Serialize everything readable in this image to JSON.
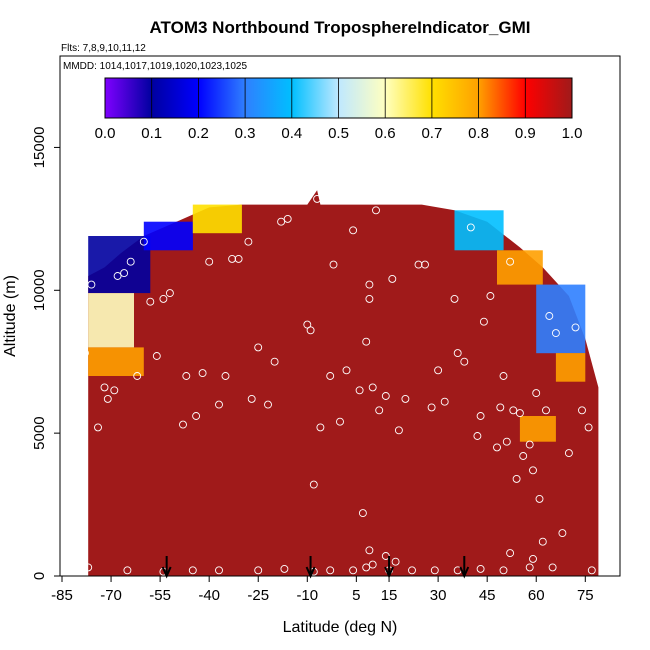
{
  "chart_data": {
    "type": "heatmap",
    "title": "ATOM3 Northbound TroposphereIndicator_GMI",
    "flights_note": "Flts: 7,8,9,10,11,12",
    "dates_note": "MMDD: 1014,1017,1019,1020,1023,1025",
    "xlabel": "Latitude (deg N)",
    "ylabel": "Altitude (m)",
    "xlim": [
      -85,
      85
    ],
    "ylim": [
      0,
      17500
    ],
    "x_ticks": [
      "-85",
      "-70",
      "-55",
      "-40",
      "-25",
      "-10",
      "5",
      "15",
      "30",
      "45",
      "60",
      "75"
    ],
    "y_ticks": [
      "0",
      "5000",
      "10000",
      "15000"
    ],
    "colorbar": {
      "range": [
        0,
        1
      ],
      "tick_labels": [
        "0.0",
        "0.1",
        "0.2",
        "0.3",
        "0.4",
        "0.5",
        "0.6",
        "0.7",
        "0.8",
        "0.9",
        "1.0"
      ],
      "colors": [
        "#7f00ff",
        "#0000a0",
        "#0000ff",
        "#2f7fff",
        "#00bfff",
        "#bfe8ff",
        "#ffffc0",
        "#ffe000",
        "#ffa000",
        "#ff0000",
        "#a01a1a"
      ]
    },
    "background_value": 1.0,
    "arrows_lat": [
      -53,
      -9,
      15,
      38
    ],
    "curtain_profile": [
      {
        "lat": -77,
        "alt_top": 10500
      },
      {
        "lat": -72,
        "alt_top": 10800
      },
      {
        "lat": -67,
        "alt_top": 11300
      },
      {
        "lat": -60,
        "alt_top": 11900
      },
      {
        "lat": -50,
        "alt_top": 12400
      },
      {
        "lat": -40,
        "alt_top": 12900
      },
      {
        "lat": -30,
        "alt_top": 13000
      },
      {
        "lat": -10,
        "alt_top": 13000
      },
      {
        "lat": -7,
        "alt_top": 13500
      },
      {
        "lat": -6,
        "alt_top": 13000
      },
      {
        "lat": 25,
        "alt_top": 13000
      },
      {
        "lat": 35,
        "alt_top": 12800
      },
      {
        "lat": 45,
        "alt_top": 12400
      },
      {
        "lat": 55,
        "alt_top": 11500
      },
      {
        "lat": 62,
        "alt_top": 10800
      },
      {
        "lat": 70,
        "alt_top": 9800
      },
      {
        "lat": 75,
        "alt_top": 8300
      },
      {
        "lat": 79,
        "alt_top": 6600
      }
    ],
    "low_value_features": [
      {
        "lat0": -77,
        "lat1": -58,
        "alt0": 9900,
        "alt1": 11900,
        "value": 0.1
      },
      {
        "lat0": -77,
        "lat1": -63,
        "alt0": 8000,
        "alt1": 9900,
        "value": 0.55
      },
      {
        "lat0": -77,
        "lat1": -60,
        "alt0": 7000,
        "alt1": 8000,
        "value": 0.8
      },
      {
        "lat0": -60,
        "lat1": -45,
        "alt0": 11400,
        "alt1": 12400,
        "value": 0.2
      },
      {
        "lat0": -45,
        "lat1": -30,
        "alt0": 12000,
        "alt1": 13000,
        "value": 0.65
      },
      {
        "lat0": 35,
        "lat1": 50,
        "alt0": 11400,
        "alt1": 12800,
        "value": 0.35
      },
      {
        "lat0": 48,
        "lat1": 62,
        "alt0": 10200,
        "alt1": 11400,
        "value": 0.75
      },
      {
        "lat0": 60,
        "lat1": 75,
        "alt0": 7800,
        "alt1": 10200,
        "value": 0.3
      },
      {
        "lat0": 66,
        "lat1": 75,
        "alt0": 6800,
        "alt1": 7800,
        "value": 0.8
      },
      {
        "lat0": 55,
        "lat1": 66,
        "alt0": 4700,
        "alt1": 5600,
        "value": 0.75
      }
    ],
    "sample_points": [
      {
        "lat": -78,
        "alt": 7800
      },
      {
        "lat": -76,
        "alt": 10200
      },
      {
        "lat": -74,
        "alt": 5200
      },
      {
        "lat": -72,
        "alt": 6600
      },
      {
        "lat": -71,
        "alt": 6200
      },
      {
        "lat": -69,
        "alt": 6500
      },
      {
        "lat": -68,
        "alt": 10500
      },
      {
        "lat": -66,
        "alt": 10600
      },
      {
        "lat": -64,
        "alt": 11000
      },
      {
        "lat": -62,
        "alt": 7000
      },
      {
        "lat": -60,
        "alt": 11700
      },
      {
        "lat": -58,
        "alt": 9600
      },
      {
        "lat": -56,
        "alt": 7700
      },
      {
        "lat": -54,
        "alt": 9700
      },
      {
        "lat": -52,
        "alt": 9900
      },
      {
        "lat": -48,
        "alt": 5300
      },
      {
        "lat": -47,
        "alt": 7000
      },
      {
        "lat": -44,
        "alt": 5600
      },
      {
        "lat": -42,
        "alt": 7100
      },
      {
        "lat": -40,
        "alt": 11000
      },
      {
        "lat": -37,
        "alt": 6000
      },
      {
        "lat": -35,
        "alt": 7000
      },
      {
        "lat": -33,
        "alt": 11100
      },
      {
        "lat": -31,
        "alt": 11100
      },
      {
        "lat": -28,
        "alt": 11700
      },
      {
        "lat": -27,
        "alt": 6200
      },
      {
        "lat": -25,
        "alt": 8000
      },
      {
        "lat": -22,
        "alt": 6000
      },
      {
        "lat": -20,
        "alt": 7500
      },
      {
        "lat": -18,
        "alt": 12400
      },
      {
        "lat": -16,
        "alt": 12500
      },
      {
        "lat": -10,
        "alt": 8800
      },
      {
        "lat": -9,
        "alt": 8600
      },
      {
        "lat": -8,
        "alt": 3200
      },
      {
        "lat": -7,
        "alt": 13200
      },
      {
        "lat": -6,
        "alt": 5200
      },
      {
        "lat": -3,
        "alt": 7000
      },
      {
        "lat": -2,
        "alt": 10900
      },
      {
        "lat": 0,
        "alt": 5400
      },
      {
        "lat": 2,
        "alt": 7200
      },
      {
        "lat": 4,
        "alt": 12100
      },
      {
        "lat": 6,
        "alt": 6500
      },
      {
        "lat": 7,
        "alt": 2200
      },
      {
        "lat": 8,
        "alt": 8200
      },
      {
        "lat": 9,
        "alt": 9700
      },
      {
        "lat": 9,
        "alt": 10200
      },
      {
        "lat": 10,
        "alt": 6600
      },
      {
        "lat": 11,
        "alt": 12800
      },
      {
        "lat": 12,
        "alt": 5800
      },
      {
        "lat": 14,
        "alt": 6300
      },
      {
        "lat": 16,
        "alt": 10400
      },
      {
        "lat": 18,
        "alt": 5100
      },
      {
        "lat": 20,
        "alt": 6200
      },
      {
        "lat": 24,
        "alt": 10900
      },
      {
        "lat": 26,
        "alt": 10900
      },
      {
        "lat": 28,
        "alt": 5900
      },
      {
        "lat": 30,
        "alt": 7200
      },
      {
        "lat": 32,
        "alt": 6100
      },
      {
        "lat": 35,
        "alt": 9700
      },
      {
        "lat": 36,
        "alt": 7800
      },
      {
        "lat": 38,
        "alt": 7500
      },
      {
        "lat": 40,
        "alt": 12200
      },
      {
        "lat": 42,
        "alt": 4900
      },
      {
        "lat": 43,
        "alt": 5600
      },
      {
        "lat": 44,
        "alt": 8900
      },
      {
        "lat": 46,
        "alt": 9800
      },
      {
        "lat": 48,
        "alt": 4500
      },
      {
        "lat": 49,
        "alt": 5900
      },
      {
        "lat": 50,
        "alt": 7000
      },
      {
        "lat": 51,
        "alt": 4700
      },
      {
        "lat": 52,
        "alt": 11000
      },
      {
        "lat": 53,
        "alt": 5800
      },
      {
        "lat": 54,
        "alt": 3400
      },
      {
        "lat": 55,
        "alt": 5700
      },
      {
        "lat": 56,
        "alt": 4200
      },
      {
        "lat": 58,
        "alt": 4600
      },
      {
        "lat": 59,
        "alt": 3700
      },
      {
        "lat": 60,
        "alt": 6400
      },
      {
        "lat": 61,
        "alt": 2700
      },
      {
        "lat": 62,
        "alt": 1200
      },
      {
        "lat": 63,
        "alt": 5800
      },
      {
        "lat": 64,
        "alt": 9100
      },
      {
        "lat": 66,
        "alt": 8500
      },
      {
        "lat": 68,
        "alt": 1500
      },
      {
        "lat": 70,
        "alt": 4300
      },
      {
        "lat": 72,
        "alt": 8700
      },
      {
        "lat": 74,
        "alt": 5800
      },
      {
        "lat": 76,
        "alt": 5200
      },
      {
        "lat": 77,
        "alt": 200
      },
      {
        "lat": -77,
        "alt": 300
      },
      {
        "lat": -65,
        "alt": 200
      },
      {
        "lat": -54,
        "alt": 150
      },
      {
        "lat": -45,
        "alt": 200
      },
      {
        "lat": -37,
        "alt": 200
      },
      {
        "lat": -25,
        "alt": 200
      },
      {
        "lat": -17,
        "alt": 250
      },
      {
        "lat": -8,
        "alt": 150
      },
      {
        "lat": -3,
        "alt": 200
      },
      {
        "lat": 4,
        "alt": 200
      },
      {
        "lat": 8,
        "alt": 300
      },
      {
        "lat": 9,
        "alt": 900
      },
      {
        "lat": 10,
        "alt": 400
      },
      {
        "lat": 14,
        "alt": 700
      },
      {
        "lat": 15,
        "alt": 200
      },
      {
        "lat": 17,
        "alt": 500
      },
      {
        "lat": 22,
        "alt": 200
      },
      {
        "lat": 29,
        "alt": 200
      },
      {
        "lat": 36,
        "alt": 200
      },
      {
        "lat": 43,
        "alt": 250
      },
      {
        "lat": 50,
        "alt": 200
      },
      {
        "lat": 52,
        "alt": 800
      },
      {
        "lat": 58,
        "alt": 300
      },
      {
        "lat": 59,
        "alt": 600
      },
      {
        "lat": 65,
        "alt": 300
      }
    ]
  }
}
